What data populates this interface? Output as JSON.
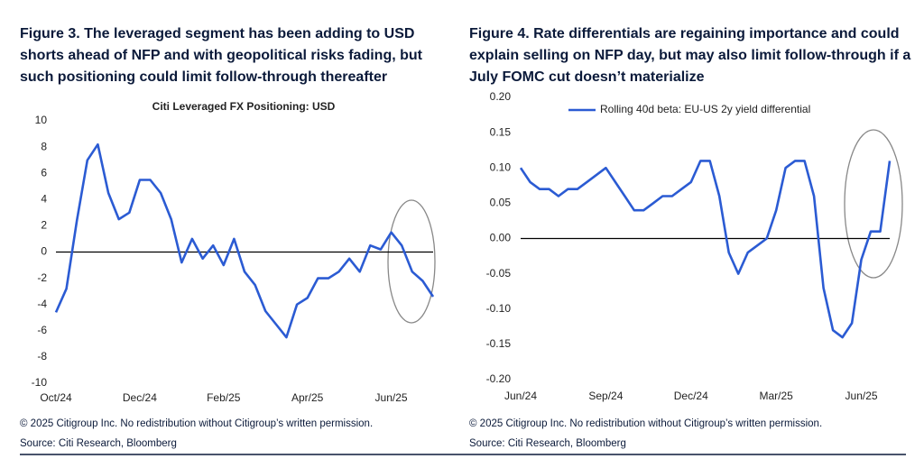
{
  "chart_data": [
    {
      "type": "line",
      "title": "Figure 3. The leveraged segment has been adding to USD shorts ahead of NFP and with geopolitical risks fading, but such positioning could limit follow-through thereafter",
      "subtitle": "Citi Leveraged FX Positioning: USD",
      "categories": [
        "Oct/24",
        null,
        null,
        null,
        null,
        null,
        null,
        null,
        "Dec/24",
        null,
        null,
        null,
        null,
        null,
        null,
        null,
        "Feb/25",
        null,
        null,
        null,
        null,
        null,
        null,
        null,
        "Apr/25",
        null,
        null,
        null,
        null,
        null,
        null,
        null,
        "Jun/25",
        null,
        null,
        null,
        null
      ],
      "series": [
        {
          "name": null,
          "color": "#2b5bd3",
          "values": [
            -4.6,
            -2.8,
            2.4,
            7.0,
            8.2,
            4.5,
            2.5,
            3.0,
            5.5,
            5.5,
            4.5,
            2.5,
            -0.8,
            1.0,
            -0.5,
            0.5,
            -1.0,
            1.0,
            -1.5,
            -2.5,
            -4.5,
            -5.5,
            -6.5,
            -4.0,
            -3.5,
            -2.0,
            -2.0,
            -1.5,
            -0.5,
            -1.5,
            0.5,
            0.2,
            1.5,
            0.5,
            -1.5,
            -2.2,
            -3.4
          ]
        }
      ],
      "ylim": [
        -10,
        10
      ],
      "yticks": [
        -10,
        -8,
        -6,
        -4,
        -2,
        0,
        2,
        4,
        6,
        8,
        10
      ],
      "grid": false,
      "notes": [
        "© 2025 Citigroup Inc. No redistribution without Citigroup’s written permission.",
        "Source: Citi Research, Bloomberg"
      ]
    },
    {
      "type": "line",
      "title": "Figure 4. Rate differentials are regaining importance and could explain selling on NFP day, but may also limit follow-through if a July FOMC cut doesn’t materialize",
      "categories": [
        "Jun/24",
        null,
        null,
        null,
        null,
        null,
        null,
        null,
        null,
        "Sep/24",
        null,
        null,
        null,
        null,
        null,
        null,
        null,
        null,
        "Dec/24",
        null,
        null,
        null,
        null,
        null,
        null,
        null,
        null,
        "Mar/25",
        null,
        null,
        null,
        null,
        null,
        null,
        null,
        null,
        "Jun/25",
        null,
        null,
        null
      ],
      "series": [
        {
          "name": "Rolling 40d beta: EU-US 2y yield differential",
          "color": "#2b5bd3",
          "values": [
            0.1,
            0.08,
            0.07,
            0.07,
            0.06,
            0.07,
            0.07,
            0.08,
            0.09,
            0.1,
            0.08,
            0.06,
            0.04,
            0.04,
            0.05,
            0.06,
            0.06,
            0.07,
            0.08,
            0.11,
            0.11,
            0.06,
            -0.02,
            -0.05,
            -0.02,
            -0.01,
            0.0,
            0.04,
            0.1,
            0.11,
            0.11,
            0.06,
            -0.07,
            -0.13,
            -0.14,
            -0.12,
            -0.03,
            0.01,
            0.01,
            0.11
          ]
        }
      ],
      "ylim": [
        -0.2,
        0.2
      ],
      "yticks": [
        {
          "value": -0.2,
          "label": "-0.20"
        },
        -0.15,
        {
          "value": -0.1,
          "label": "-0.10"
        },
        -0.05,
        {
          "value": 0,
          "label": "0.00"
        },
        0.05,
        {
          "value": 0.1,
          "label": "0.10"
        },
        0.15,
        {
          "value": 0.2,
          "label": "0.20"
        }
      ],
      "grid": false,
      "legend": "top",
      "notes": [
        "© 2025 Citigroup Inc. No redistribution without Citigroup’s written permission.",
        "Source: Citi Research, Bloomberg"
      ]
    }
  ]
}
